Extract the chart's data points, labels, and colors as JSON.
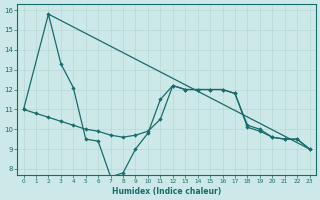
{
  "xlabel": "Humidex (Indice chaleur)",
  "bg_color": "#cce8e8",
  "line_color": "#1a6b6b",
  "grid_color": "#b8d8d8",
  "xlim": [
    -0.5,
    23.5
  ],
  "ylim": [
    7.7,
    16.3
  ],
  "yticks": [
    8,
    9,
    10,
    11,
    12,
    13,
    14,
    15,
    16
  ],
  "xticks": [
    0,
    1,
    2,
    3,
    4,
    5,
    6,
    7,
    8,
    9,
    10,
    11,
    12,
    13,
    14,
    15,
    16,
    17,
    18,
    19,
    20,
    21,
    22,
    23
  ],
  "line1_x": [
    0,
    1,
    2,
    3,
    4,
    5,
    6,
    7,
    8,
    9,
    10,
    11,
    12,
    13,
    14,
    15,
    16,
    17,
    18,
    19,
    20,
    21,
    22,
    23
  ],
  "line1_y": [
    11.0,
    10.8,
    10.6,
    10.4,
    10.2,
    10.0,
    9.9,
    9.7,
    9.6,
    9.7,
    9.9,
    10.5,
    12.2,
    12.0,
    12.0,
    12.0,
    12.0,
    11.8,
    10.1,
    9.9,
    9.6,
    9.5,
    9.5,
    9.0
  ],
  "line2_x": [
    0,
    2,
    3,
    4,
    5,
    6,
    7,
    8,
    9,
    10,
    11,
    12,
    13,
    14,
    15,
    16,
    17,
    18,
    19,
    20,
    21,
    22,
    23
  ],
  "line2_y": [
    11.0,
    15.8,
    13.3,
    12.1,
    9.5,
    9.4,
    7.6,
    7.8,
    9.0,
    9.8,
    11.5,
    12.2,
    12.0,
    12.0,
    12.0,
    12.0,
    11.8,
    10.2,
    10.0,
    9.6,
    9.5,
    9.5,
    9.0
  ],
  "line3_x": [
    2,
    23
  ],
  "line3_y": [
    15.8,
    9.0
  ]
}
